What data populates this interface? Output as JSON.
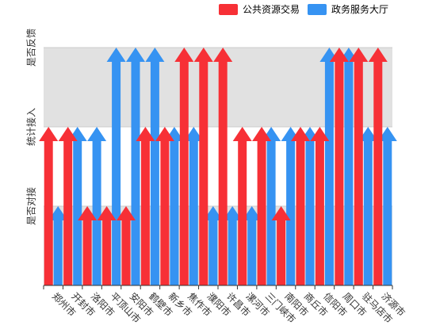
{
  "chart_data": {
    "type": "bar",
    "categories": [
      "郑州市",
      "开封市",
      "洛阳市",
      "平顶山市",
      "安阳市",
      "鹤壁市",
      "新乡市",
      "焦作市",
      "濮阳市",
      "许昌市",
      "漯河市",
      "三门峡市",
      "南阳市",
      "商丘市",
      "信阳市",
      "周口市",
      "驻马店市",
      "济源市"
    ],
    "y_categories": [
      "是否对接",
      "统计接入",
      "是否反馈"
    ],
    "series": [
      {
        "name": "公共资源交易",
        "color": "#f73036",
        "values": [
          2,
          2,
          1,
          1,
          1,
          2,
          2,
          3,
          3,
          3,
          2,
          2,
          1,
          2,
          2,
          3,
          3,
          3
        ]
      },
      {
        "name": "政务服务大厅",
        "color": "#3693f2",
        "values": [
          1,
          2,
          2,
          3,
          3,
          3,
          2,
          2,
          1,
          1,
          1,
          2,
          2,
          2,
          3,
          3,
          2,
          2
        ]
      }
    ],
    "legend_position": "top",
    "grid": true
  }
}
